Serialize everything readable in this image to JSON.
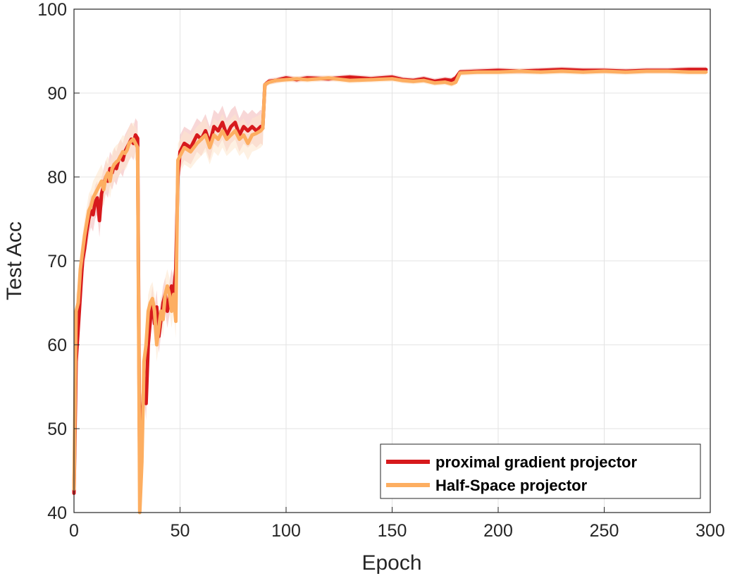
{
  "chart_data": {
    "type": "line",
    "title": "",
    "xlabel": "Epoch",
    "ylabel": "Test Acc",
    "xlim": [
      0,
      300
    ],
    "ylim": [
      40,
      100
    ],
    "xticks": [
      0,
      50,
      100,
      150,
      200,
      250,
      300
    ],
    "yticks": [
      40,
      50,
      60,
      70,
      80,
      90,
      100
    ],
    "grid": true,
    "legend_position": "bottom-right",
    "series": [
      {
        "name": "proximal gradient projector",
        "color": "#d7191c",
        "band_color": "#f2b6b6",
        "x": [
          0,
          1,
          2,
          3,
          4,
          5,
          6,
          7,
          8,
          9,
          10,
          11,
          12,
          13,
          14,
          15,
          16,
          17,
          18,
          19,
          20,
          21,
          22,
          23,
          24,
          25,
          26,
          27,
          28,
          29,
          30,
          31,
          32,
          33,
          34,
          35,
          36,
          37,
          38,
          39,
          40,
          41,
          42,
          43,
          44,
          45,
          46,
          47,
          48,
          49,
          50,
          52,
          55,
          58,
          60,
          62,
          64,
          66,
          68,
          70,
          72,
          74,
          76,
          78,
          80,
          82,
          84,
          86,
          88,
          89,
          90,
          92,
          95,
          100,
          105,
          110,
          120,
          130,
          140,
          150,
          155,
          160,
          165,
          170,
          175,
          178,
          180,
          182,
          190,
          200,
          210,
          220,
          230,
          240,
          250,
          260,
          270,
          280,
          290,
          298
        ],
        "values": [
          42.3,
          58,
          62,
          66,
          70,
          71.5,
          73.5,
          75,
          76,
          75.5,
          77,
          77.5,
          74.8,
          78,
          79,
          80,
          79.5,
          81,
          80.5,
          81.5,
          81,
          82,
          82.5,
          82,
          83,
          83.5,
          84,
          84.5,
          84,
          85,
          84.6,
          44,
          50,
          56,
          53,
          60,
          63,
          65,
          62.5,
          64.5,
          61,
          63,
          65,
          66,
          64,
          65.5,
          67,
          66,
          69,
          80,
          83,
          84,
          83.5,
          85,
          84.5,
          85.5,
          84,
          86,
          85.5,
          86.5,
          85,
          86,
          86.5,
          85,
          86,
          85.5,
          86,
          85.5,
          86,
          85.8,
          91,
          91.4,
          91.5,
          91.8,
          91.6,
          91.8,
          91.7,
          91.9,
          91.7,
          91.9,
          91.6,
          91.5,
          91.7,
          91.4,
          91.6,
          91.5,
          91.8,
          92.5,
          92.6,
          92.7,
          92.6,
          92.7,
          92.8,
          92.7,
          92.7,
          92.6,
          92.7,
          92.7,
          92.8,
          92.8
        ]
      },
      {
        "name": "Half-Space projector",
        "color": "#fdae61",
        "band_color": "#fde5cc",
        "x": [
          0,
          1,
          2,
          3,
          4,
          5,
          6,
          7,
          8,
          9,
          10,
          11,
          12,
          13,
          14,
          15,
          16,
          17,
          18,
          19,
          20,
          21,
          22,
          23,
          24,
          25,
          26,
          27,
          28,
          29,
          30,
          31,
          32,
          33,
          34,
          35,
          36,
          37,
          38,
          39,
          40,
          41,
          42,
          43,
          44,
          45,
          46,
          47,
          48,
          49,
          50,
          52,
          55,
          58,
          60,
          62,
          64,
          66,
          68,
          70,
          72,
          74,
          76,
          78,
          80,
          82,
          84,
          86,
          88,
          89,
          90,
          92,
          95,
          100,
          105,
          110,
          120,
          130,
          140,
          150,
          155,
          160,
          165,
          170,
          175,
          178,
          180,
          182,
          190,
          200,
          210,
          220,
          230,
          240,
          250,
          260,
          270,
          280,
          290,
          298
        ],
        "values": [
          42.8,
          64,
          65,
          69,
          71,
          73,
          74.5,
          76,
          76.5,
          77.5,
          78,
          78.5,
          79,
          79.5,
          78.5,
          80,
          80.5,
          79.5,
          81,
          81.5,
          81.8,
          82,
          82.5,
          83,
          82.8,
          83.2,
          84,
          84.3,
          84.5,
          84,
          83.5,
          40,
          46,
          58,
          60,
          64,
          65,
          65.5,
          64,
          60,
          62,
          64,
          63,
          66,
          67,
          66,
          64,
          66,
          62.8,
          82,
          82.5,
          83.5,
          83,
          84,
          84.5,
          85,
          83.5,
          85,
          84.5,
          85.5,
          84.5,
          85,
          85.5,
          84.5,
          85,
          84,
          85,
          85.2,
          85.5,
          85.8,
          91,
          91.3,
          91.5,
          91.6,
          91.7,
          91.6,
          91.8,
          91.5,
          91.6,
          91.7,
          91.5,
          91.4,
          91.5,
          91.2,
          91.3,
          91.1,
          91.3,
          92.4,
          92.5,
          92.5,
          92.6,
          92.5,
          92.6,
          92.5,
          92.6,
          92.5,
          92.6,
          92.6,
          92.5,
          92.5
        ]
      }
    ]
  }
}
